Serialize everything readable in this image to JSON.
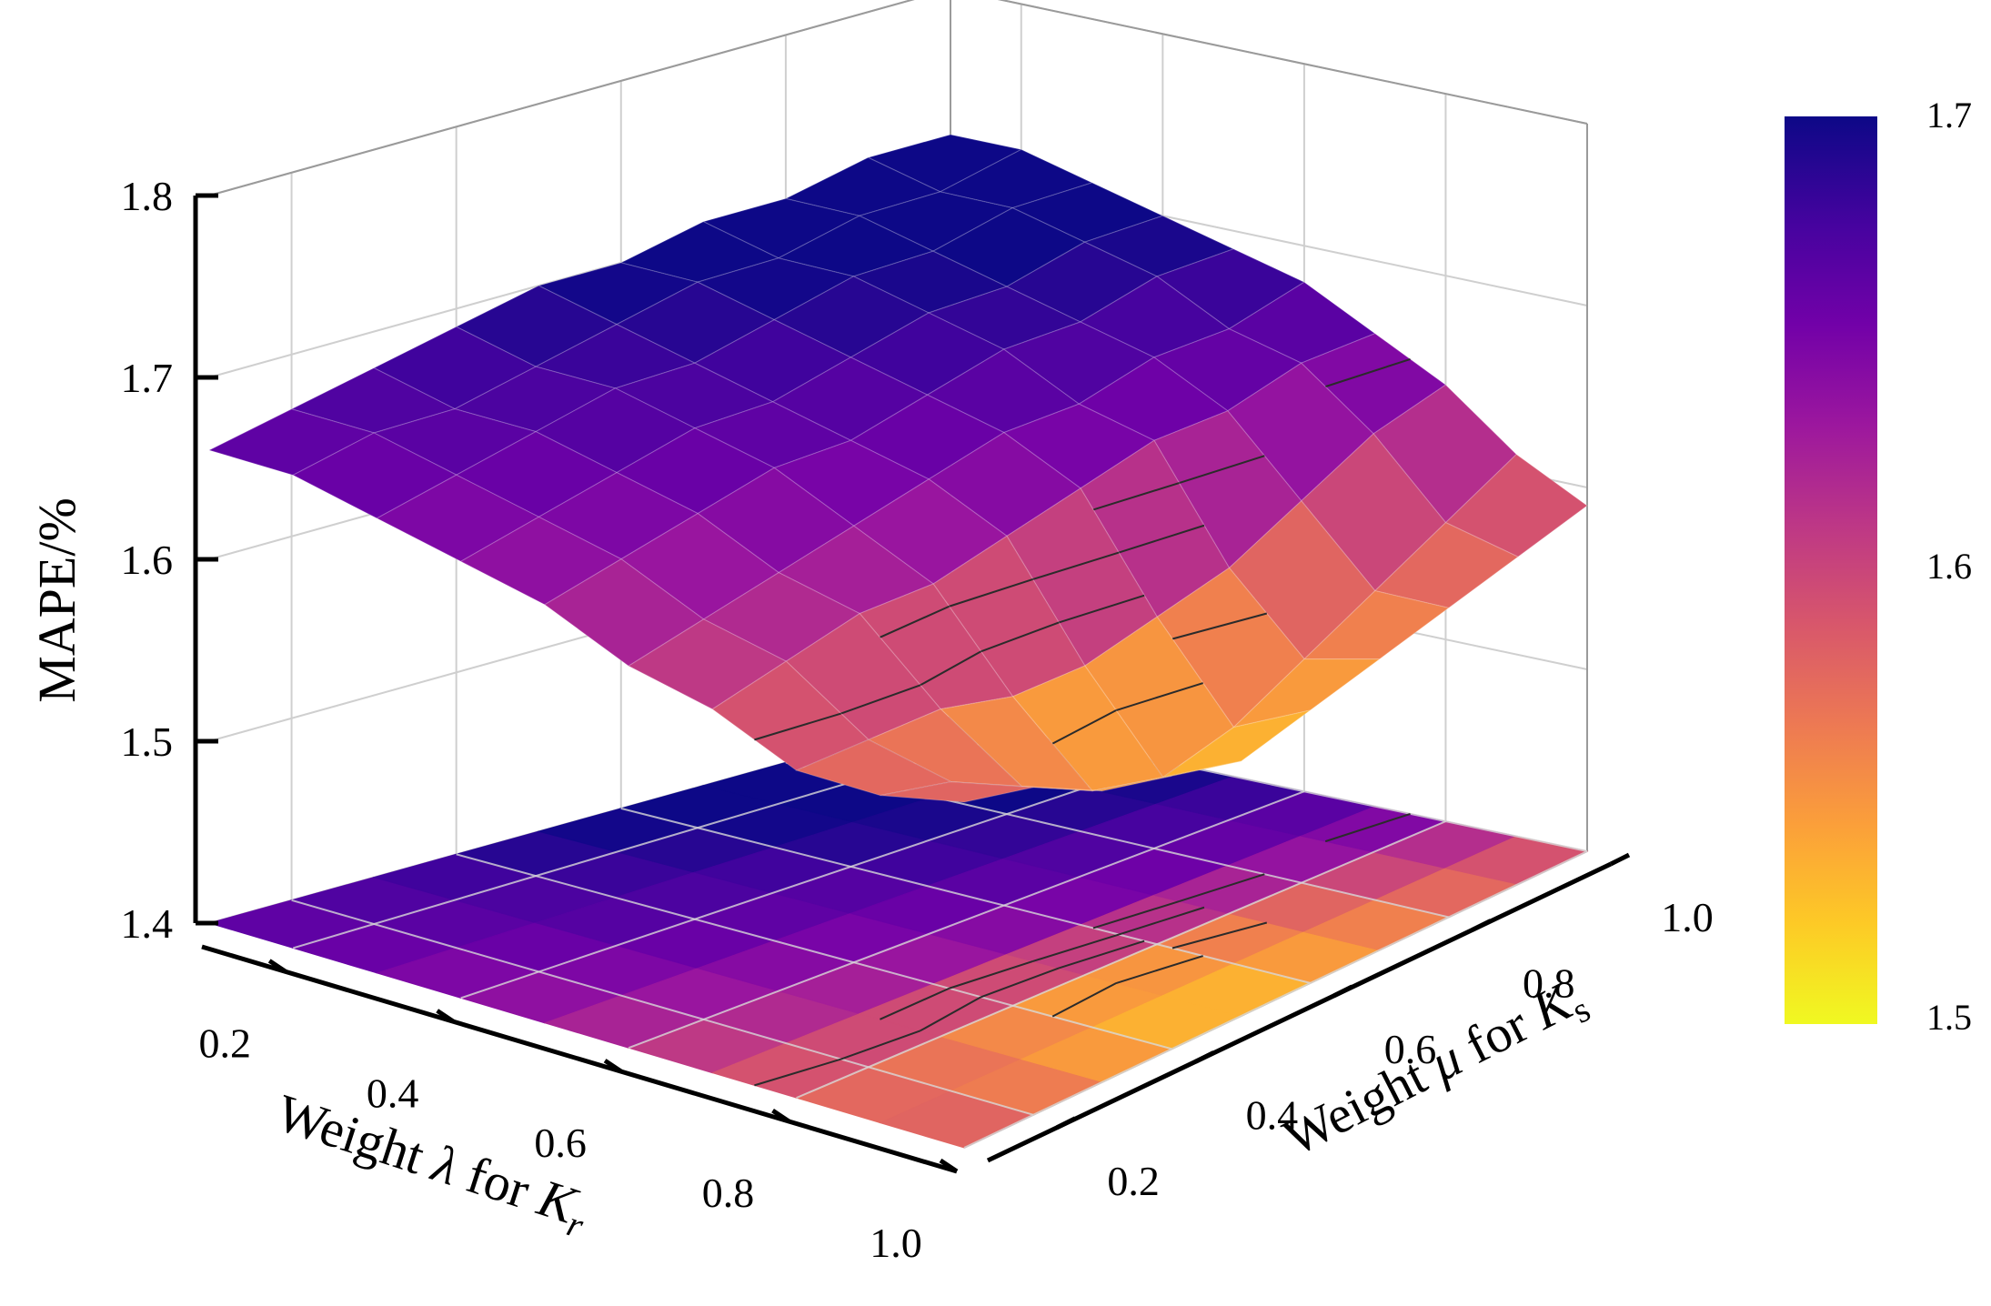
{
  "chart_data": {
    "type": "surface3d",
    "title": "",
    "zlabel": "MAPE/%",
    "xlabel": {
      "pre": "Weight ",
      "sym": "λ",
      "mid": " for ",
      "var": "K",
      "sub": "r"
    },
    "ylabel": {
      "pre": "Weight ",
      "sym": "μ",
      "mid": " for ",
      "var": "K",
      "sub": "s"
    },
    "x_ticks": [
      "0.2",
      "0.4",
      "0.6",
      "0.8",
      "1.0"
    ],
    "y_ticks": [
      "0.2",
      "0.4",
      "0.6",
      "0.8",
      "1.0"
    ],
    "z_ticks": [
      "1.4",
      "1.5",
      "1.6",
      "1.7",
      "1.8"
    ],
    "zlim": [
      1.4,
      1.8
    ],
    "x": [
      0.1,
      0.2,
      0.3,
      0.4,
      0.5,
      0.6,
      0.7,
      0.8,
      0.9,
      1.0
    ],
    "y": [
      0.1,
      0.2,
      0.3,
      0.4,
      0.5,
      0.6,
      0.7,
      0.8,
      0.9,
      1.0
    ],
    "z_note": "rows indexed by lambda (x), columns by mu (y)",
    "z": [
      [
        1.66,
        1.67,
        1.68,
        1.69,
        1.7,
        1.7,
        1.71,
        1.71,
        1.72,
        1.72
      ],
      [
        1.66,
        1.67,
        1.67,
        1.68,
        1.69,
        1.7,
        1.7,
        1.71,
        1.71,
        1.72
      ],
      [
        1.65,
        1.66,
        1.67,
        1.68,
        1.68,
        1.69,
        1.7,
        1.7,
        1.71,
        1.71
      ],
      [
        1.64,
        1.65,
        1.66,
        1.67,
        1.67,
        1.68,
        1.69,
        1.69,
        1.7,
        1.7
      ],
      [
        1.63,
        1.64,
        1.65,
        1.66,
        1.66,
        1.67,
        1.68,
        1.68,
        1.69,
        1.69
      ],
      [
        1.61,
        1.62,
        1.63,
        1.64,
        1.65,
        1.66,
        1.66,
        1.67,
        1.67,
        1.68
      ],
      [
        1.6,
        1.61,
        1.62,
        1.62,
        1.63,
        1.64,
        1.65,
        1.65,
        1.66,
        1.66
      ],
      [
        1.58,
        1.58,
        1.58,
        1.57,
        1.57,
        1.58,
        1.59,
        1.61,
        1.63,
        1.64
      ],
      [
        1.58,
        1.57,
        1.55,
        1.53,
        1.52,
        1.53,
        1.55,
        1.57,
        1.59,
        1.61
      ],
      [
        1.59,
        1.58,
        1.56,
        1.55,
        1.54,
        1.55,
        1.56,
        1.57,
        1.58,
        1.59
      ]
    ],
    "colormap": "plasma",
    "colorbar": {
      "min": 1.5,
      "max": 1.7,
      "ticks": [
        "1.5",
        "1.6",
        "1.7"
      ]
    },
    "contours_on_surface": true,
    "contour_projection_on_floor": true,
    "grid": true,
    "colors": {
      "plasma": [
        "#0d0887",
        "#46039f",
        "#7201a8",
        "#9c179e",
        "#bd3786",
        "#d8576b",
        "#ed7953",
        "#fb9f3a",
        "#fdca26",
        "#f0f921"
      ],
      "contour": "#2b2b2b",
      "grid": "#cfcfcf",
      "axis": "#000000"
    }
  }
}
